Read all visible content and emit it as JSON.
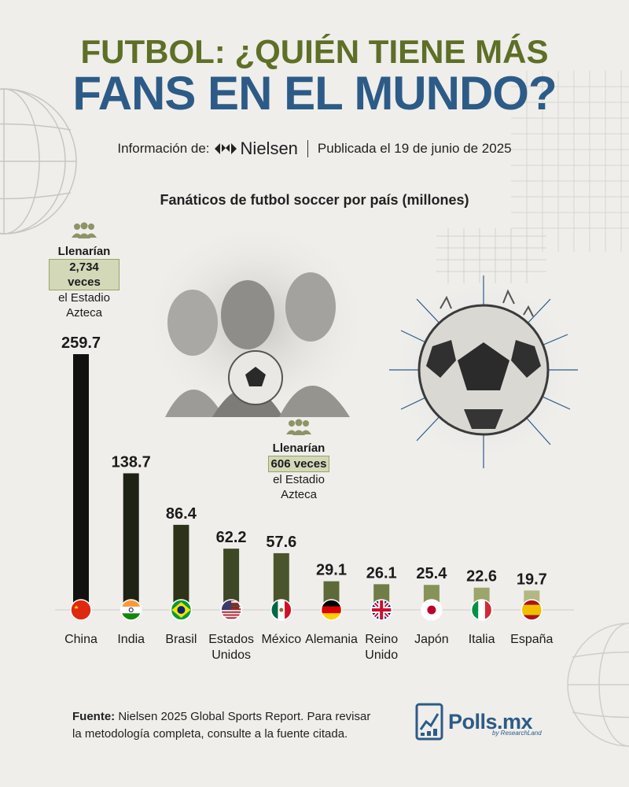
{
  "header": {
    "title_line1": "FUTBOL: ¿QUIÉN TIENE MÁS",
    "title_line2": "FANS EN EL MUNDO?",
    "source_prefix": "Información de:",
    "source_brand": "Nielsen",
    "published": "Publicada el 19 de junio de 2025"
  },
  "callouts": [
    {
      "icon": "people-icon",
      "line1": "Llenarían",
      "highlight": "2,734 veces",
      "line3": "el Estadio",
      "line4": "Azteca"
    },
    {
      "icon": "people-icon",
      "line1": "Llenarían",
      "highlight": "606 veces",
      "line3": "el Estadio",
      "line4": "Azteca"
    }
  ],
  "chart_data": {
    "type": "bar",
    "title": "Fanáticos de futbol soccer por país (millones)",
    "categories": [
      "China",
      "India",
      "Brasil",
      "Estados Unidos",
      "México",
      "Alemania",
      "Reino Unido",
      "Japón",
      "Italia",
      "España"
    ],
    "category_lines": [
      [
        "China"
      ],
      [
        "India"
      ],
      [
        "Brasil"
      ],
      [
        "Estados",
        "Unidos"
      ],
      [
        "México"
      ],
      [
        "Alemania"
      ],
      [
        "Reino",
        "Unido"
      ],
      [
        "Japón"
      ],
      [
        "Italia"
      ],
      [
        "España"
      ]
    ],
    "values": [
      259.7,
      138.7,
      86.4,
      62.2,
      57.6,
      29.1,
      26.1,
      25.4,
      22.6,
      19.7
    ],
    "value_labels": [
      "259.7",
      "138.7",
      "86.4",
      "62.2",
      "57.6",
      "29.1",
      "26.1",
      "25.4",
      "22.6",
      "19.7"
    ],
    "flags": [
      "china-flag-icon",
      "india-flag-icon",
      "brazil-flag-icon",
      "usa-flag-icon",
      "mexico-flag-icon",
      "germany-flag-icon",
      "uk-flag-icon",
      "japan-flag-icon",
      "italy-flag-icon",
      "spain-flag-icon"
    ],
    "bar_colors": [
      "#111111",
      "#1e2215",
      "#2c3319",
      "#3e4824",
      "#4b552c",
      "#5d6938",
      "#717d48",
      "#879259",
      "#9ca56c",
      "#b1b882"
    ],
    "ylim": [
      0,
      259.7
    ],
    "grid": false,
    "legend": "none"
  },
  "footer": {
    "source_label": "Fuente:",
    "source_text": "Nielsen 2025 Global Sports Report. Para revisar la metodología completa, consulte a la fuente citada.",
    "logo_text": "Polls.mx",
    "logo_subtext": "by ResearchLand"
  },
  "colors": {
    "background": "#efeeeb",
    "title_olive": "#5e6f26",
    "title_blue": "#2d5b87",
    "highlight": "#d3d8b9"
  }
}
